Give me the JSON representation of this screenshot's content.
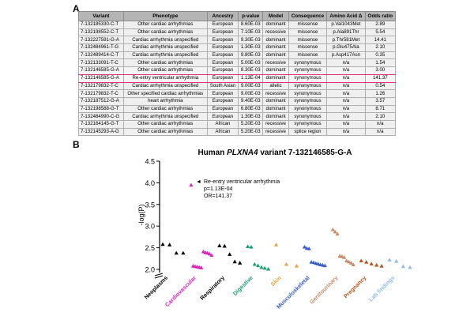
{
  "panel_a": {
    "label": "A",
    "columns": [
      "Variant",
      "Phenotype",
      "Ancestry",
      "p-value",
      "Model",
      "Consequence",
      "Amino Acid Δ",
      "Odds ratio"
    ],
    "rows": [
      [
        "7-132185330-C-T",
        "Other cardiac arrhythmias",
        "European",
        "8.60E-03",
        "dominant",
        "missense",
        "p.Val1043Met",
        "2.89"
      ],
      [
        "7-132198552-C-T",
        "Other cardiac arrhythmias",
        "European",
        "7.10E-03",
        "recessive",
        "missense",
        "p.Ala891Thr",
        "5.54"
      ],
      [
        "7-132227591-G-A",
        "Cardiac arrhythmia unspecified",
        "European",
        "9.30E-03",
        "dominant",
        "missense",
        "p.Thr581Met",
        "14.41"
      ],
      [
        "7-132484961-T-G",
        "Cardiac arrhythmia unspecified",
        "European",
        "1.30E-03",
        "dominant",
        "missense",
        "p.Glu475Ala",
        "2.10"
      ],
      [
        "7-132489414-C-T",
        "Cardiac arrhythmia unspecified",
        "European",
        "9.80E-03",
        "dominant",
        "missense",
        "p.Asp417Asn",
        "0.35"
      ],
      [
        "7-132133091-T-C",
        "Other cardiac arrhythmias",
        "European",
        "5.00E-03",
        "recessive",
        "synonymous",
        "n/a",
        "1.54"
      ],
      [
        "7-132146585-G-A",
        "Other cardiac arrhythmias",
        "European",
        "8.30E-03",
        "dominant",
        "synonymous",
        "n/a",
        "3.00"
      ],
      [
        "7-132146585-G-A",
        "Re-entry ventricular arrhythmia",
        "European",
        "1.13E-04",
        "dominant",
        "synonymous",
        "n/a",
        "141.37"
      ],
      [
        "7-132179832-T-C",
        "Cardiac arrhythmia unspecified",
        "South Asian",
        "9.00E-03",
        "allelic",
        "synonymous",
        "n/a",
        "0.54"
      ],
      [
        "7-132179832-T-C",
        "Other specified cardiac arrhythmias",
        "European",
        "9.00E-03",
        "recessive",
        "synonymous",
        "n/a",
        "1.26"
      ],
      [
        "7-132187512-G-A",
        "heart arrhythmia",
        "European",
        "9.40E-03",
        "dominant",
        "synonymous",
        "n/a",
        "3.57"
      ],
      [
        "7-132198588-G-T",
        "Other cardiac arrhythmias",
        "European",
        "6.80E-03",
        "dominant",
        "synonymous",
        "n/a",
        "8.71"
      ],
      [
        "7-132484990-C-G",
        "Cardiac arrhythmia unspecified",
        "European",
        "1.30E-03",
        "dominant",
        "synonymous",
        "n/a",
        "2.10"
      ],
      [
        "7-132164145-G-T",
        "Other cardiac arrhythmias",
        "African",
        "5.20E-03",
        "recessive",
        "synonymous",
        "n/a",
        "n/a"
      ],
      [
        "7-132145293-A-G",
        "Other cardiac arrhythmias",
        "African",
        "5.20E-03",
        "recessive",
        "splice region",
        "n/a",
        "n/a"
      ]
    ],
    "highlight_rows": [
      6,
      7
    ],
    "highlight_color": "#e0307c"
  },
  "panel_b": {
    "label": "B",
    "title_prefix": "Human ",
    "title_gene": "PLXNA4",
    "title_suffix": " variant 7-132146585-G-A",
    "annotation": {
      "line1": "Re-entry ventricular arrhythmia",
      "line2": "p=1.13E-04",
      "line3": "OR=141.37",
      "arrow": "◄"
    }
  },
  "chart_data": {
    "type": "scatter",
    "title": "Human PLXNA4 variant 7-132146585-G-A",
    "xlabel": "",
    "ylabel": "-log(P)",
    "ylim": [
      2.0,
      4.5
    ],
    "yticks": [
      "2.0",
      "2.5",
      "3.0",
      "3.5",
      "4.0",
      "4.5"
    ],
    "y_axis_break": true,
    "marker": "triangle-up",
    "categories": [
      {
        "name": "Neoplasms",
        "color": "#000000",
        "points": [
          2.58,
          2.57,
          2.38,
          2.38
        ]
      },
      {
        "name": "Cardiovascular",
        "color": "#d726b8",
        "points": [
          3.95,
          2.08,
          2.07,
          2.06,
          2.05,
          2.04,
          2.41,
          2.39,
          2.38,
          2.36,
          2.33
        ]
      },
      {
        "name": "Respiratory",
        "color": "#000000",
        "points": [
          2.55,
          2.54,
          2.35,
          2.18,
          2.15
        ]
      },
      {
        "name": "Digestive",
        "color": "#1a9e6f",
        "points": [
          2.53,
          2.52,
          2.12,
          2.09,
          2.05,
          2.03,
          2.01
        ]
      },
      {
        "name": "Skin",
        "color": "#e8a33d",
        "points": [
          2.57,
          2.12,
          2.08
        ]
      },
      {
        "name": "Musculoskeletal",
        "color": "#3b5fc4",
        "points": [
          2.52,
          2.49,
          2.48,
          2.17,
          2.16,
          2.14,
          2.13,
          2.11,
          2.1,
          2.09
        ]
      },
      {
        "name": "Genitourinary",
        "color": "#c98a6a",
        "points": [
          2.92,
          2.87,
          2.82,
          2.31,
          2.3,
          2.28,
          2.2,
          2.18,
          2.15,
          2.11
        ]
      },
      {
        "name": "Pregnancy",
        "color": "#b5541c",
        "points": [
          2.2,
          2.17,
          2.13,
          2.1,
          2.08
        ]
      },
      {
        "name": "Lab findings",
        "color": "#8fb8e8",
        "points": [
          2.22,
          2.19,
          2.07,
          2.05
        ]
      }
    ]
  }
}
